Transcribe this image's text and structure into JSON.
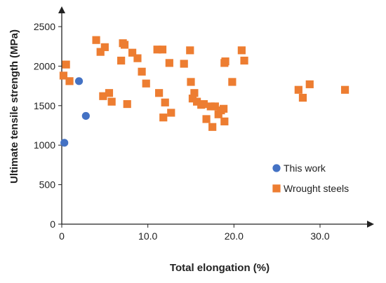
{
  "chart_data": {
    "type": "scatter",
    "title": "",
    "xlabel": "Total elongation (%)",
    "ylabel": "Ultimate tensile strength (MPa)",
    "xlim": [
      0,
      36
    ],
    "ylim": [
      0,
      2600
    ],
    "x_ticks": [
      0,
      10,
      20,
      30
    ],
    "x_tick_labels": [
      "0",
      "10.0",
      "20.0",
      "30.0"
    ],
    "y_ticks": [
      0,
      500,
      1000,
      1500,
      2000,
      2500
    ],
    "y_tick_labels": [
      "0",
      "500",
      "1000",
      "1500",
      "2000",
      "2500"
    ],
    "grid": false,
    "legend_position": "right",
    "series": [
      {
        "name": "This work",
        "marker": "circle",
        "color": "#4472C4",
        "points": [
          {
            "x": 0.3,
            "y": 1030
          },
          {
            "x": 2.0,
            "y": 1810
          },
          {
            "x": 2.8,
            "y": 1370
          }
        ]
      },
      {
        "name": "Wrought steels",
        "marker": "square",
        "color": "#ED7D31",
        "points": [
          {
            "x": 0.2,
            "y": 1880
          },
          {
            "x": 0.5,
            "y": 2020
          },
          {
            "x": 0.9,
            "y": 1810
          },
          {
            "x": 4.0,
            "y": 2330
          },
          {
            "x": 4.5,
            "y": 2180
          },
          {
            "x": 4.8,
            "y": 1620
          },
          {
            "x": 5.0,
            "y": 2240
          },
          {
            "x": 5.5,
            "y": 1660
          },
          {
            "x": 5.8,
            "y": 1550
          },
          {
            "x": 6.9,
            "y": 2070
          },
          {
            "x": 7.1,
            "y": 2290
          },
          {
            "x": 7.3,
            "y": 2270
          },
          {
            "x": 7.6,
            "y": 1520
          },
          {
            "x": 8.2,
            "y": 2170
          },
          {
            "x": 8.8,
            "y": 2100
          },
          {
            "x": 9.3,
            "y": 1930
          },
          {
            "x": 9.8,
            "y": 1780
          },
          {
            "x": 11.1,
            "y": 2210
          },
          {
            "x": 11.3,
            "y": 1660
          },
          {
            "x": 11.7,
            "y": 2210
          },
          {
            "x": 11.8,
            "y": 1350
          },
          {
            "x": 12.0,
            "y": 1540
          },
          {
            "x": 12.5,
            "y": 2040
          },
          {
            "x": 12.7,
            "y": 1410
          },
          {
            "x": 14.2,
            "y": 2030
          },
          {
            "x": 14.9,
            "y": 2200
          },
          {
            "x": 15.0,
            "y": 1800
          },
          {
            "x": 15.2,
            "y": 1590
          },
          {
            "x": 15.4,
            "y": 1660
          },
          {
            "x": 15.7,
            "y": 1550
          },
          {
            "x": 16.2,
            "y": 1510
          },
          {
            "x": 16.5,
            "y": 1520
          },
          {
            "x": 16.8,
            "y": 1330
          },
          {
            "x": 17.3,
            "y": 1490
          },
          {
            "x": 17.5,
            "y": 1230
          },
          {
            "x": 17.8,
            "y": 1490
          },
          {
            "x": 18.2,
            "y": 1390
          },
          {
            "x": 18.5,
            "y": 1440
          },
          {
            "x": 18.8,
            "y": 1460
          },
          {
            "x": 18.9,
            "y": 1300
          },
          {
            "x": 18.9,
            "y": 2040
          },
          {
            "x": 19.0,
            "y": 2060
          },
          {
            "x": 19.8,
            "y": 1800
          },
          {
            "x": 20.9,
            "y": 2200
          },
          {
            "x": 21.2,
            "y": 2070
          },
          {
            "x": 27.5,
            "y": 1700
          },
          {
            "x": 28.0,
            "y": 1600
          },
          {
            "x": 28.8,
            "y": 1770
          },
          {
            "x": 32.9,
            "y": 1700
          }
        ]
      }
    ]
  }
}
